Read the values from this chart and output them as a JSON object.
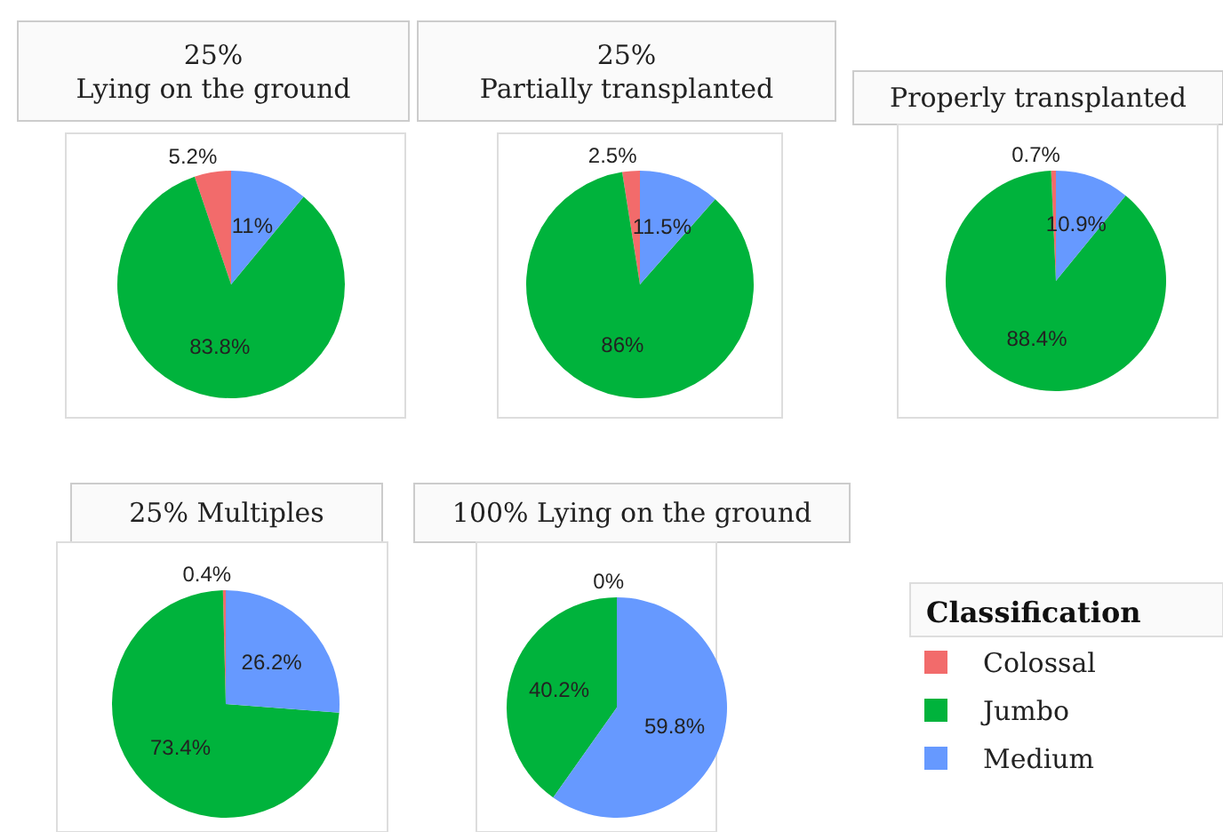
{
  "chart_data": [
    {
      "type": "pie",
      "title": "25%\nLying on the ground",
      "categories": [
        null,
        null,
        null
      ],
      "values": [
        5.2,
        83.8,
        11
      ],
      "colors": [
        "#f26b6b",
        "#00b33c",
        "#6699ff"
      ],
      "value_labels": [
        "5.2%",
        "83.8%",
        "11%"
      ]
    },
    {
      "type": "pie",
      "title": "25%\nPartially transplanted",
      "categories": [
        null,
        null,
        null
      ],
      "values": [
        2.5,
        86,
        11.5
      ],
      "colors": [
        "#f26b6b",
        "#00b33c",
        "#6699ff"
      ],
      "value_labels": [
        "2.5%",
        "86%",
        "11.5%"
      ]
    },
    {
      "type": "pie",
      "title": "Properly transplanted",
      "categories": [
        null,
        null,
        null
      ],
      "values": [
        0.7,
        88.4,
        10.9
      ],
      "colors": [
        "#f26b6b",
        "#00b33c",
        "#6699ff"
      ],
      "value_labels": [
        "0.7%",
        "88.4%",
        "10.9%"
      ]
    },
    {
      "type": "pie",
      "title": "25% Multiples",
      "categories": [
        null,
        null,
        null
      ],
      "values": [
        0.4,
        73.4,
        26.2
      ],
      "colors": [
        "#f26b6b",
        "#00b33c",
        "#6699ff"
      ],
      "value_labels": [
        "0.4%",
        "73.4%",
        "26.2%"
      ]
    },
    {
      "type": "pie",
      "title": "100% Lying on the ground",
      "categories": [
        "Colossal",
        "Jumbo",
        "Medium"
      ],
      "values": [
        0,
        40.2,
        59.8
      ],
      "colors": [
        "#f26b6b",
        "#00b33c",
        "#6699ff"
      ],
      "value_labels": [
        "0%",
        "40.2%",
        "59.8%"
      ],
      "legend": "right",
      "legend_title": "Classification"
    }
  ]
}
